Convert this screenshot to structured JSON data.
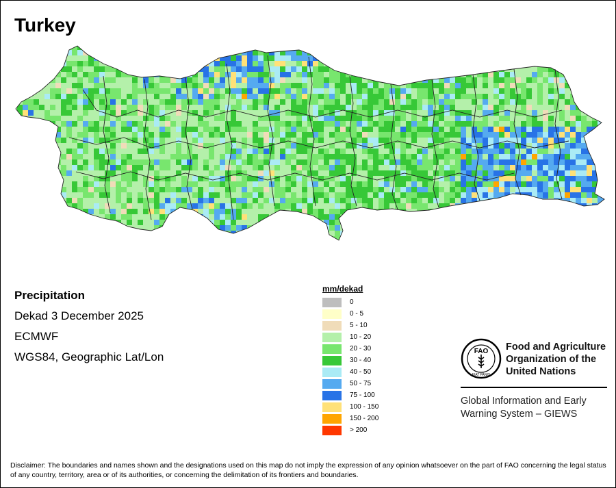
{
  "title": "Turkey",
  "info": {
    "variable": "Precipitation",
    "period": "Dekad 3 December 2025",
    "model": "ECMWF",
    "projection": "WGS84, Geographic Lat/Lon"
  },
  "legend": {
    "title": "mm/dekad",
    "items": [
      {
        "label": "0",
        "color": "#BEBEBE"
      },
      {
        "label": "0 - 5",
        "color": "#FFFFC8"
      },
      {
        "label": "5 - 10",
        "color": "#F0DCB9"
      },
      {
        "label": "10 - 20",
        "color": "#B4F0AA"
      },
      {
        "label": "20 - 30",
        "color": "#78E66E"
      },
      {
        "label": "30 - 40",
        "color": "#37C837"
      },
      {
        "label": "40 - 50",
        "color": "#AAEBF5"
      },
      {
        "label": "50 - 75",
        "color": "#55AAF0"
      },
      {
        "label": "75 - 100",
        "color": "#2873E6"
      },
      {
        "label": "100 - 150",
        "color": "#FFE178"
      },
      {
        "label": "150 - 200",
        "color": "#FFA500"
      },
      {
        "label": "> 200",
        "color": "#FF3700"
      }
    ]
  },
  "fao": {
    "logo_text": "FAO",
    "logo_motto": "FIAT PANIS",
    "line1": "Food and Agriculture",
    "line2": "Organization of the",
    "line3": "United Nations",
    "giews_line1": "Global Information and Early",
    "giews_line2": "Warning System – GIEWS"
  },
  "disclaimer": "Disclaimer: The boundaries and names shown and the designations used on this map do not imply the expression of any opinion whatsoever on the part of FAO concerning the legal status of any country, territory, area or of its authorities, or concerning the delimitation of its frontiers and boundaries."
}
